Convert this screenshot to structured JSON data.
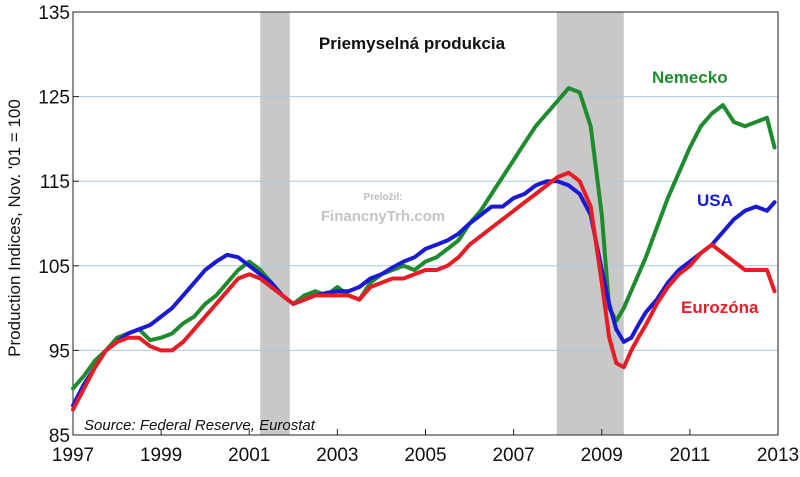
{
  "chart_data": {
    "type": "line",
    "title": "Priemyselná produkcia",
    "ylabel": "Production Indices, Nov. '01 = 100",
    "xlabel": "",
    "source": "Source: Federal Reserve, Eurostat",
    "watermark": {
      "line1": "Preložil:",
      "line2": "FinancnyTrh.com"
    },
    "xlim": [
      1997.0,
      2013.0
    ],
    "ylim": [
      85,
      135
    ],
    "x_ticks": [
      1997,
      1999,
      2001,
      2003,
      2005,
      2007,
      2009,
      2011,
      2013
    ],
    "y_ticks": [
      85,
      95,
      105,
      115,
      125,
      135
    ],
    "grid": true,
    "recessions": [
      [
        2001.25,
        2001.92
      ],
      [
        2007.98,
        2009.5
      ]
    ],
    "series": [
      {
        "name": "Nemecko",
        "color": "#1e8c2e",
        "points": [
          [
            1997.0,
            90.5
          ],
          [
            1997.25,
            92.0
          ],
          [
            1997.5,
            93.8
          ],
          [
            1997.75,
            95.0
          ],
          [
            1998.0,
            96.5
          ],
          [
            1998.25,
            97.0
          ],
          [
            1998.5,
            97.5
          ],
          [
            1998.75,
            96.2
          ],
          [
            1999.0,
            96.5
          ],
          [
            1999.25,
            97.0
          ],
          [
            1999.5,
            98.2
          ],
          [
            1999.75,
            99.0
          ],
          [
            2000.0,
            100.5
          ],
          [
            2000.25,
            101.5
          ],
          [
            2000.5,
            103.0
          ],
          [
            2000.75,
            104.5
          ],
          [
            2001.0,
            105.5
          ],
          [
            2001.25,
            104.5
          ],
          [
            2001.5,
            103.0
          ],
          [
            2001.75,
            101.5
          ],
          [
            2002.0,
            100.5
          ],
          [
            2002.25,
            101.5
          ],
          [
            2002.5,
            102.0
          ],
          [
            2002.75,
            101.5
          ],
          [
            2003.0,
            102.5
          ],
          [
            2003.25,
            101.5
          ],
          [
            2003.5,
            101.0
          ],
          [
            2003.75,
            103.0
          ],
          [
            2004.0,
            104.0
          ],
          [
            2004.25,
            104.5
          ],
          [
            2004.5,
            105.0
          ],
          [
            2004.75,
            104.5
          ],
          [
            2005.0,
            105.5
          ],
          [
            2005.25,
            106.0
          ],
          [
            2005.5,
            107.0
          ],
          [
            2005.75,
            108.0
          ],
          [
            2006.0,
            110.0
          ],
          [
            2006.25,
            111.5
          ],
          [
            2006.5,
            113.5
          ],
          [
            2006.75,
            115.5
          ],
          [
            2007.0,
            117.5
          ],
          [
            2007.25,
            119.5
          ],
          [
            2007.5,
            121.5
          ],
          [
            2007.75,
            123.0
          ],
          [
            2008.0,
            124.5
          ],
          [
            2008.25,
            126.0
          ],
          [
            2008.5,
            125.5
          ],
          [
            2008.75,
            121.5
          ],
          [
            2009.0,
            111.0
          ],
          [
            2009.17,
            100.0
          ],
          [
            2009.33,
            98.5
          ],
          [
            2009.5,
            100.0
          ],
          [
            2009.75,
            103.0
          ],
          [
            2010.0,
            106.0
          ],
          [
            2010.25,
            109.5
          ],
          [
            2010.5,
            113.0
          ],
          [
            2010.75,
            116.0
          ],
          [
            2011.0,
            119.0
          ],
          [
            2011.25,
            121.5
          ],
          [
            2011.5,
            123.0
          ],
          [
            2011.75,
            124.0
          ],
          [
            2012.0,
            122.0
          ],
          [
            2012.25,
            121.5
          ],
          [
            2012.5,
            122.0
          ],
          [
            2012.75,
            122.5
          ],
          [
            2012.92,
            119.0
          ]
        ]
      },
      {
        "name": "USA",
        "color": "#1a1ad6",
        "points": [
          [
            1997.0,
            88.5
          ],
          [
            1997.25,
            91.0
          ],
          [
            1997.5,
            93.0
          ],
          [
            1997.75,
            95.0
          ],
          [
            1998.0,
            96.0
          ],
          [
            1998.25,
            97.0
          ],
          [
            1998.5,
            97.5
          ],
          [
            1998.75,
            98.0
          ],
          [
            1999.0,
            99.0
          ],
          [
            1999.25,
            100.0
          ],
          [
            1999.5,
            101.5
          ],
          [
            1999.75,
            103.0
          ],
          [
            2000.0,
            104.5
          ],
          [
            2000.25,
            105.5
          ],
          [
            2000.5,
            106.3
          ],
          [
            2000.75,
            106.0
          ],
          [
            2001.0,
            105.0
          ],
          [
            2001.25,
            104.0
          ],
          [
            2001.5,
            103.0
          ],
          [
            2001.75,
            101.5
          ],
          [
            2002.0,
            100.5
          ],
          [
            2002.25,
            101.0
          ],
          [
            2002.5,
            101.5
          ],
          [
            2002.75,
            101.8
          ],
          [
            2003.0,
            102.0
          ],
          [
            2003.25,
            102.0
          ],
          [
            2003.5,
            102.5
          ],
          [
            2003.75,
            103.5
          ],
          [
            2004.0,
            104.0
          ],
          [
            2004.25,
            104.8
          ],
          [
            2004.5,
            105.5
          ],
          [
            2004.75,
            106.0
          ],
          [
            2005.0,
            107.0
          ],
          [
            2005.25,
            107.5
          ],
          [
            2005.5,
            108.0
          ],
          [
            2005.75,
            108.8
          ],
          [
            2006.0,
            110.0
          ],
          [
            2006.25,
            111.0
          ],
          [
            2006.5,
            112.0
          ],
          [
            2006.75,
            112.0
          ],
          [
            2007.0,
            113.0
          ],
          [
            2007.25,
            113.5
          ],
          [
            2007.5,
            114.5
          ],
          [
            2007.75,
            115.0
          ],
          [
            2008.0,
            115.0
          ],
          [
            2008.25,
            114.5
          ],
          [
            2008.5,
            113.5
          ],
          [
            2008.75,
            111.0
          ],
          [
            2009.0,
            104.5
          ],
          [
            2009.17,
            100.5
          ],
          [
            2009.33,
            97.5
          ],
          [
            2009.5,
            96.0
          ],
          [
            2009.67,
            96.5
          ],
          [
            2009.83,
            98.0
          ],
          [
            2010.0,
            99.5
          ],
          [
            2010.25,
            101.0
          ],
          [
            2010.5,
            103.0
          ],
          [
            2010.75,
            104.5
          ],
          [
            2011.0,
            105.5
          ],
          [
            2011.25,
            106.5
          ],
          [
            2011.5,
            107.5
          ],
          [
            2011.75,
            109.0
          ],
          [
            2012.0,
            110.5
          ],
          [
            2012.25,
            111.5
          ],
          [
            2012.5,
            112.0
          ],
          [
            2012.75,
            111.5
          ],
          [
            2012.92,
            112.5
          ]
        ]
      },
      {
        "name": "Eurozóna",
        "color": "#e81c24",
        "points": [
          [
            1997.0,
            88.0
          ],
          [
            1997.25,
            90.5
          ],
          [
            1997.5,
            93.0
          ],
          [
            1997.75,
            95.0
          ],
          [
            1998.0,
            96.0
          ],
          [
            1998.25,
            96.5
          ],
          [
            1998.5,
            96.5
          ],
          [
            1998.75,
            95.5
          ],
          [
            1999.0,
            95.0
          ],
          [
            1999.25,
            95.0
          ],
          [
            1999.5,
            96.0
          ],
          [
            1999.75,
            97.5
          ],
          [
            2000.0,
            99.0
          ],
          [
            2000.25,
            100.5
          ],
          [
            2000.5,
            102.0
          ],
          [
            2000.75,
            103.5
          ],
          [
            2001.0,
            104.0
          ],
          [
            2001.25,
            103.5
          ],
          [
            2001.5,
            102.5
          ],
          [
            2001.75,
            101.5
          ],
          [
            2002.0,
            100.5
          ],
          [
            2002.25,
            101.0
          ],
          [
            2002.5,
            101.5
          ],
          [
            2002.75,
            101.5
          ],
          [
            2003.0,
            101.5
          ],
          [
            2003.25,
            101.5
          ],
          [
            2003.5,
            101.0
          ],
          [
            2003.75,
            102.5
          ],
          [
            2004.0,
            103.0
          ],
          [
            2004.25,
            103.5
          ],
          [
            2004.5,
            103.5
          ],
          [
            2004.75,
            104.0
          ],
          [
            2005.0,
            104.5
          ],
          [
            2005.25,
            104.5
          ],
          [
            2005.5,
            105.0
          ],
          [
            2005.75,
            106.0
          ],
          [
            2006.0,
            107.5
          ],
          [
            2006.25,
            108.5
          ],
          [
            2006.5,
            109.5
          ],
          [
            2006.75,
            110.5
          ],
          [
            2007.0,
            111.5
          ],
          [
            2007.25,
            112.5
          ],
          [
            2007.5,
            113.5
          ],
          [
            2007.75,
            114.5
          ],
          [
            2008.0,
            115.5
          ],
          [
            2008.25,
            116.0
          ],
          [
            2008.5,
            115.0
          ],
          [
            2008.75,
            112.0
          ],
          [
            2009.0,
            103.0
          ],
          [
            2009.17,
            96.5
          ],
          [
            2009.33,
            93.5
          ],
          [
            2009.5,
            93.0
          ],
          [
            2009.67,
            95.0
          ],
          [
            2009.83,
            96.5
          ],
          [
            2010.0,
            98.0
          ],
          [
            2010.25,
            100.5
          ],
          [
            2010.5,
            102.5
          ],
          [
            2010.75,
            104.0
          ],
          [
            2011.0,
            105.0
          ],
          [
            2011.25,
            106.5
          ],
          [
            2011.5,
            107.5
          ],
          [
            2011.75,
            106.5
          ],
          [
            2012.0,
            105.5
          ],
          [
            2012.25,
            104.5
          ],
          [
            2012.5,
            104.5
          ],
          [
            2012.75,
            104.5
          ],
          [
            2012.92,
            102.0
          ]
        ]
      }
    ]
  }
}
